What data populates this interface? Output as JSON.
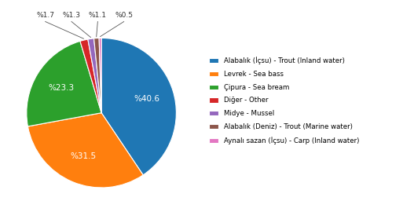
{
  "chart_data": {
    "type": "pie",
    "categories": [
      "Alabalık (İçsu) - Trout (Inland water)",
      "Levrek - Sea bass",
      "Çipura - Sea bream",
      "Diğer - Other",
      "Midye - Mussel",
      "Alabalık (Deniz) - Trout (Marine water)",
      "Aynalı sazan (İçsu) - Carp (Inland water)"
    ],
    "values": [
      40.6,
      31.5,
      23.3,
      1.7,
      1.3,
      1.1,
      0.5
    ],
    "value_labels": [
      "%40.6",
      "%31.5",
      "%23.3",
      "%1.7",
      "%1.3",
      "%1.1",
      "%0.5"
    ],
    "data_labels": true,
    "legend": "center left"
  }
}
